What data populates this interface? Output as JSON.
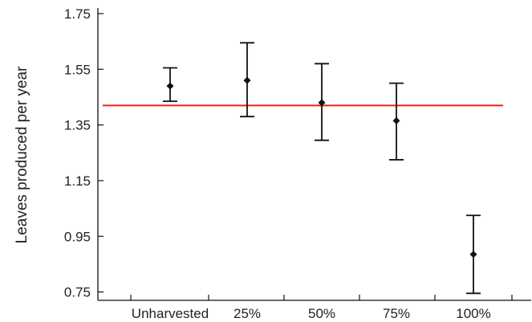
{
  "chart_data": {
    "type": "scatter",
    "title": "",
    "xlabel": "",
    "ylabel": "Leaves produced per year",
    "categories": [
      "Unharvested",
      "25%",
      "50%",
      "75%",
      "100%"
    ],
    "series": [
      {
        "means": [
          1.49,
          1.51,
          1.43,
          1.365,
          0.885
        ],
        "lower": [
          1.435,
          1.38,
          1.295,
          1.225,
          0.745
        ],
        "upper": [
          1.555,
          1.645,
          1.57,
          1.5,
          1.025
        ]
      }
    ],
    "reference_line": {
      "value": 1.42,
      "color": "#e8231c"
    },
    "ylim": [
      0.72,
      1.77
    ],
    "yticks": [
      "0.75",
      "0.95",
      "1.15",
      "1.35",
      "1.55",
      "1.75"
    ],
    "ytick_values": [
      0.75,
      0.95,
      1.15,
      1.35,
      1.55,
      1.75
    ],
    "grid": false,
    "legend": "none",
    "colors": {
      "axis": "#111111",
      "marker": "#111111",
      "reference": "#e8231c"
    }
  }
}
